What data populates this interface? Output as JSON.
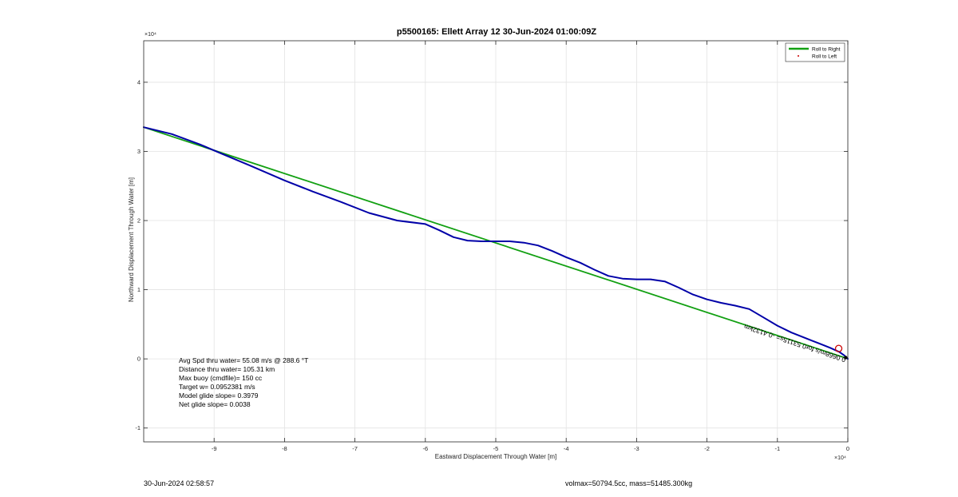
{
  "footer": {
    "timestamp": "30-Jun-2024 02:58:57",
    "volmax_mass": "volmax=50794.5cc, mass=51485.300kg"
  },
  "chart_data": {
    "type": "line",
    "title": "p5500165: Ellett Array 12 30-Jun-2024 01:00:09Z",
    "xlabel": "Eastward Displacement Through Water [m]",
    "ylabel": "Northward Displacement Through Water [m]",
    "x_exponent_label": "×10⁴",
    "y_exponent_label": "×10⁴",
    "xlim": [
      -100000,
      0
    ],
    "ylim": [
      -12000,
      46000
    ],
    "xticks": [
      -90000,
      -80000,
      -70000,
      -60000,
      -50000,
      -40000,
      -30000,
      -20000,
      -10000,
      0
    ],
    "xtick_labels": [
      "-9",
      "-8",
      "-7",
      "-6",
      "-5",
      "-4",
      "-3",
      "-2",
      "-1",
      "0"
    ],
    "yticks": [
      -10000,
      0,
      10000,
      20000,
      30000,
      40000
    ],
    "ytick_labels": [
      "-1",
      "0",
      "1",
      "2",
      "3",
      "4"
    ],
    "grid": true,
    "legend_position": "top-right",
    "legend": [
      {
        "name": "Roll to Right",
        "color": "#12a012",
        "style": "line"
      },
      {
        "name": "Roll to Left",
        "color": "#cc0000",
        "style": "dot"
      }
    ],
    "colors": {
      "track": "#0000a8",
      "net": "#12a012",
      "marker": "#cc0000"
    },
    "series": [
      {
        "name": "Roll to Right",
        "color": "#12a012",
        "x": [
          -100000,
          -200
        ],
        "y": [
          33500,
          100
        ]
      },
      {
        "color": "#0000a8",
        "x": [
          -100000,
          -96000,
          -92000,
          -89000,
          -85000,
          -80000,
          -76000,
          -72000,
          -68000,
          -64000,
          -60000,
          -58000,
          -56000,
          -54000,
          -52000,
          -50000,
          -48000,
          -46000,
          -44000,
          -42000,
          -40000,
          -38000,
          -36000,
          -34000,
          -32000,
          -30000,
          -28000,
          -26000,
          -24000,
          -22000,
          -20000,
          -18000,
          -16000,
          -14000,
          -12000,
          -10000,
          -8000,
          -6000,
          -4000,
          -2500,
          -1200,
          -500,
          0
        ],
        "y": [
          33500,
          32500,
          31000,
          29700,
          28000,
          25800,
          24200,
          22700,
          21100,
          20000,
          19500,
          18600,
          17600,
          17100,
          17000,
          17000,
          17000,
          16800,
          16400,
          15600,
          14700,
          13900,
          12900,
          12000,
          11600,
          11500,
          11500,
          11200,
          10300,
          9300,
          8600,
          8100,
          7700,
          7200,
          6000,
          4800,
          3800,
          3000,
          2200,
          1600,
          1000,
          500,
          0
        ]
      }
    ],
    "markers": [
      {
        "x": -1300,
        "y": 1500,
        "shape": "circle",
        "color": "#cc0000"
      },
      {
        "x": -300,
        "y": 200,
        "shape": "dot",
        "color": "#000000"
      }
    ],
    "annotations": {
      "stats": [
        "Avg Spd thru water= 55.08 m/s @ 288.6 °T",
        "Distance thru water= 105.31 km",
        "Max buoy (cmdfile)= 150 cc",
        "Target w= 0.0952381 m/s",
        "Model glide slope= 0.3979",
        "Net glide slope= 0.0038"
      ],
      "current_label": "0.0668m/s for0 53115s= -0.4132km"
    }
  }
}
